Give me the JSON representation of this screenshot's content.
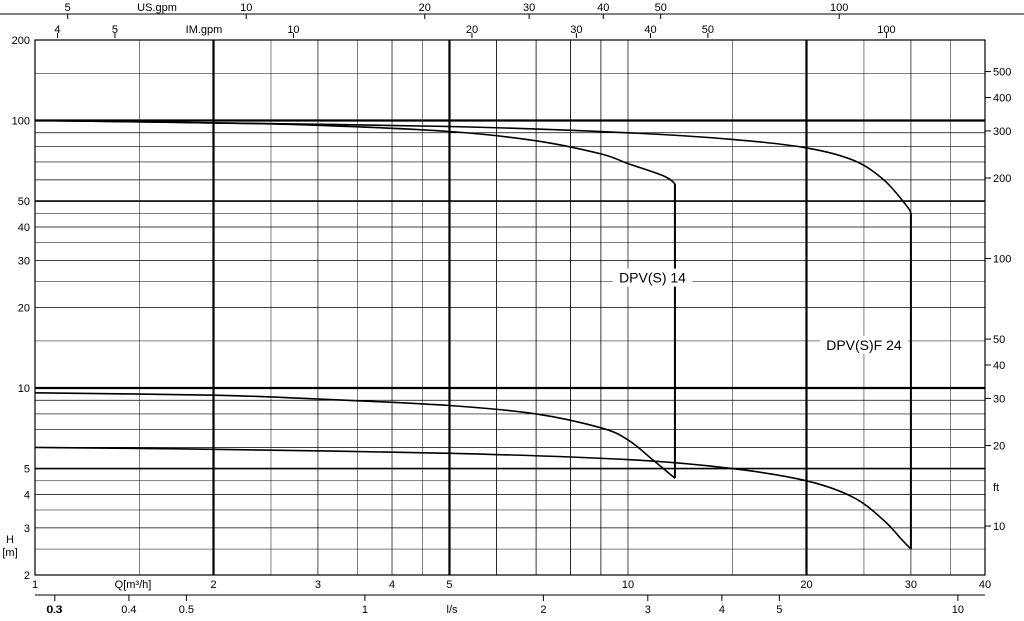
{
  "chart_data": {
    "type": "line",
    "log_scale": {
      "x": true,
      "y": true
    },
    "grid": true,
    "x": {
      "label": "Q[m³/h]",
      "range": [
        1,
        40
      ],
      "ticks": [
        "1",
        "2",
        "3",
        "4",
        "5",
        "10",
        "20",
        "30",
        "40"
      ]
    },
    "y": {
      "label": "H [m]",
      "range": [
        2,
        200
      ],
      "ticks": [
        "2",
        "3",
        "4",
        "5",
        "10",
        "20",
        "30",
        "40",
        "50",
        "100",
        "200"
      ]
    },
    "secondary_axes": {
      "us_gpm": {
        "label": "US.gpm",
        "ticks": [
          "5",
          "10",
          "20",
          "30",
          "40",
          "50",
          "100"
        ]
      },
      "im_gpm": {
        "label": "IM.gpm",
        "ticks": [
          "4",
          "5",
          "10",
          "20",
          "30",
          "40",
          "50",
          "100"
        ]
      },
      "ls": {
        "label": "l/s",
        "ticks": [
          "0.3",
          "0.4",
          "0.5",
          "1",
          "2",
          "3",
          "4",
          "5",
          "10"
        ]
      },
      "ft": {
        "label": "ft",
        "ticks": [
          "10",
          "20",
          "30",
          "40",
          "50",
          "100",
          "200",
          "300",
          "400",
          "500"
        ]
      }
    },
    "series": [
      {
        "name": "DPV(S) 14",
        "x": [
          1,
          2,
          3,
          5,
          7,
          9,
          10,
          11.5,
          12
        ],
        "y": [
          100,
          98,
          96,
          91,
          84,
          75,
          69,
          62,
          58
        ]
      },
      {
        "name": "DPV(S) 14",
        "x": [
          1,
          2,
          3,
          5,
          7,
          9,
          10,
          11,
          12
        ],
        "y": [
          9.6,
          9.4,
          9.1,
          8.6,
          8.0,
          7.1,
          6.4,
          5.4,
          4.6
        ]
      },
      {
        "name": "DPV(S)F 24",
        "x": [
          1,
          2,
          5,
          10,
          15,
          20,
          24,
          27,
          29.5,
          30
        ],
        "y": [
          100,
          98,
          95,
          90,
          85,
          79,
          71,
          60,
          48,
          45
        ]
      },
      {
        "name": "DPV(S)F 24",
        "x": [
          1,
          2,
          5,
          10,
          15,
          20,
          24,
          27,
          29,
          30
        ],
        "y": [
          6.0,
          5.9,
          5.7,
          5.4,
          5.0,
          4.5,
          3.9,
          3.2,
          2.7,
          2.5
        ]
      }
    ],
    "annotations": [
      {
        "text": "DPV(S) 14",
        "x": 11,
        "y": 25
      },
      {
        "text": "DPV(S)F 24",
        "x": 25,
        "y": 14
      }
    ],
    "colors": {
      "line": "#000000",
      "grid": "#000000"
    }
  }
}
